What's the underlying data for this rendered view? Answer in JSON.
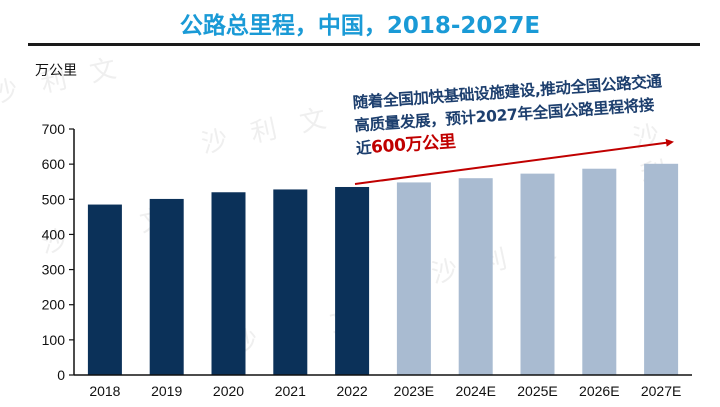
{
  "watermark": "沙 利 文",
  "chart_data": {
    "type": "bar",
    "title": "公路总里程，中国，2018-2027E",
    "ylabel": "万公里",
    "xlabel": "",
    "ylim": [
      0,
      700
    ],
    "yticks": [
      0,
      100,
      200,
      300,
      400,
      500,
      600,
      700
    ],
    "categories": [
      "2018",
      "2019",
      "2020",
      "2021",
      "2022",
      "2023E",
      "2024E",
      "2025E",
      "2026E",
      "2027E"
    ],
    "values": [
      485,
      501,
      520,
      528,
      535,
      548,
      560,
      573,
      587,
      601
    ],
    "colors": {
      "actual": "#0b3159",
      "forecast": "#a9bbd1",
      "title": "#1a9ad6",
      "arrow": "#c00000",
      "note": "#1d3f6e"
    },
    "grid": false,
    "legend": "none",
    "annotation": {
      "text_main": "随着全国加快基础设施建设,推动全国公路交通高质量发展，预计2027年全国公路里程将接近",
      "text_highlight": "600万公里"
    }
  }
}
